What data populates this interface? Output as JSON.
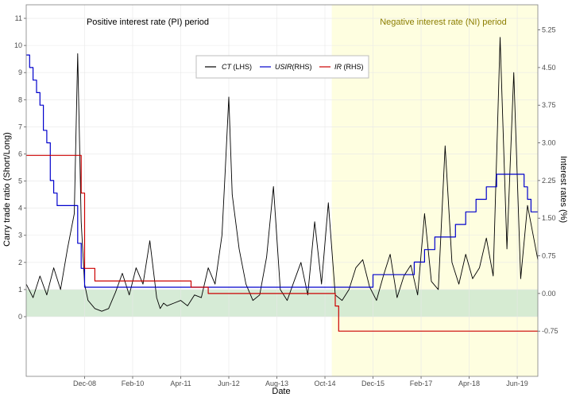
{
  "chart_data": {
    "type": "line",
    "xlabel": "Date",
    "ylabel_left": "Carry trade ratio (Short/Long)",
    "ylabel_right": "Interest rates (%)",
    "x_tick_labels": [
      "Dec-08",
      "Feb-10",
      "Apr-11",
      "Jun-12",
      "Aug-13",
      "Oct-14",
      "Dec-15",
      "Feb-17",
      "Apr-18",
      "Jun-19"
    ],
    "left_ticks": [
      "0",
      "1",
      "2",
      "3",
      "4",
      "5",
      "6",
      "7",
      "8",
      "9",
      "10",
      "11"
    ],
    "right_ticks": [
      "-0.75",
      "0.00",
      "0.75",
      "1.50",
      "2.25",
      "3.00",
      "3.75",
      "4.50",
      "5.25"
    ],
    "xlim": [
      "2007-07",
      "2019-12"
    ],
    "ylim_left": [
      -2.2,
      11.5
    ],
    "ylim_right": [
      -1.65,
      5.75
    ],
    "grid": true,
    "regions": [
      {
        "label": "Positive interest rate (PI) period",
        "from": "2007-07",
        "to": "2014-12",
        "color": "#ffffff",
        "text_color": "#000000"
      },
      {
        "label": "Negative interest rate (NI) period",
        "from": "2014-12",
        "to": "2019-12",
        "color": "#fefee0",
        "text_color": "#8b7d00"
      }
    ],
    "band": {
      "from": 0,
      "to": 1,
      "color": "#cfe8cf"
    },
    "legend": {
      "placement": "top-center",
      "entries": [
        {
          "name": "CT",
          "suffix": "(LHS)",
          "color": "#000000"
        },
        {
          "name": "USIR",
          "suffix": "(RHS)",
          "color": "#0000cc"
        },
        {
          "name": "IR",
          "suffix": "(RHS)",
          "color": "#cc0000"
        }
      ]
    },
    "series": [
      {
        "name": "CT",
        "axis": "left",
        "color": "#000000",
        "x": [
          "2007-07",
          "2007-09",
          "2007-11",
          "2008-01",
          "2008-03",
          "2008-05",
          "2008-07",
          "2008-09",
          "2008-10",
          "2008-11",
          "2008-12",
          "2009-01",
          "2009-03",
          "2009-05",
          "2009-07",
          "2009-09",
          "2009-11",
          "2010-01",
          "2010-03",
          "2010-05",
          "2010-07",
          "2010-09",
          "2010-10",
          "2010-11",
          "2010-12",
          "2011-02",
          "2011-04",
          "2011-06",
          "2011-08",
          "2011-10",
          "2011-12",
          "2012-02",
          "2012-04",
          "2012-05",
          "2012-06",
          "2012-07",
          "2012-09",
          "2012-11",
          "2013-01",
          "2013-03",
          "2013-05",
          "2013-07",
          "2013-09",
          "2013-11",
          "2014-01",
          "2014-03",
          "2014-05",
          "2014-07",
          "2014-09",
          "2014-11",
          "2015-01",
          "2015-03",
          "2015-05",
          "2015-07",
          "2015-09",
          "2015-11",
          "2016-01",
          "2016-03",
          "2016-05",
          "2016-07",
          "2016-09",
          "2016-11",
          "2017-01",
          "2017-03",
          "2017-05",
          "2017-07",
          "2017-09",
          "2017-11",
          "2018-01",
          "2018-03",
          "2018-05",
          "2018-07",
          "2018-09",
          "2018-11",
          "2019-01",
          "2019-03",
          "2019-05",
          "2019-07",
          "2019-09",
          "2019-12"
        ],
        "y": [
          1.2,
          0.7,
          1.5,
          0.8,
          1.8,
          1.0,
          2.5,
          3.8,
          9.7,
          3.5,
          1.2,
          0.6,
          0.3,
          0.2,
          0.3,
          0.9,
          1.6,
          0.8,
          1.8,
          1.2,
          2.8,
          0.7,
          0.3,
          0.5,
          0.4,
          0.5,
          0.6,
          0.4,
          0.8,
          0.7,
          1.8,
          1.2,
          3.0,
          5.5,
          8.1,
          4.5,
          2.5,
          1.2,
          0.6,
          0.8,
          2.2,
          4.8,
          1.0,
          0.6,
          1.3,
          2.0,
          0.8,
          3.5,
          1.2,
          4.2,
          0.8,
          0.6,
          1.0,
          1.8,
          2.1,
          1.1,
          0.6,
          1.5,
          2.3,
          0.7,
          1.5,
          1.9,
          0.8,
          3.8,
          1.3,
          1.0,
          6.3,
          2.0,
          1.2,
          2.3,
          1.4,
          1.8,
          2.9,
          1.5,
          10.3,
          2.5,
          9.0,
          1.4,
          4.1,
          2.1
        ]
      },
      {
        "name": "USIR",
        "axis": "right",
        "color": "#0000cc",
        "x": [
          "2007-07",
          "2007-08",
          "2007-09",
          "2007-10",
          "2007-11",
          "2007-12",
          "2008-01",
          "2008-02",
          "2008-03",
          "2008-04",
          "2008-10",
          "2008-11",
          "2008-12",
          "2015-12",
          "2016-12",
          "2017-03",
          "2017-06",
          "2017-12",
          "2018-03",
          "2018-06",
          "2018-09",
          "2018-12",
          "2019-07",
          "2019-08",
          "2019-09",
          "2019-10",
          "2019-12"
        ],
        "y": [
          4.75,
          4.5,
          4.25,
          4.0,
          3.75,
          3.25,
          3.0,
          2.25,
          2.0,
          1.75,
          1.0,
          0.5,
          0.125,
          0.375,
          0.625,
          0.875,
          1.125,
          1.375,
          1.625,
          1.875,
          2.125,
          2.375,
          2.375,
          2.125,
          1.875,
          1.625,
          1.625
        ]
      },
      {
        "name": "IR",
        "axis": "right",
        "color": "#cc0000",
        "x": [
          "2007-07",
          "2008-10",
          "2008-11",
          "2008-12",
          "2009-01",
          "2009-03",
          "2011-04",
          "2011-07",
          "2011-10",
          "2011-12",
          "2014-12",
          "2015-01",
          "2015-02",
          "2019-12"
        ],
        "y": [
          2.75,
          2.75,
          2.0,
          0.5,
          0.5,
          0.25,
          0.25,
          0.125,
          0.125,
          0.0,
          0.0,
          -0.25,
          -0.75,
          -0.75
        ]
      }
    ]
  }
}
